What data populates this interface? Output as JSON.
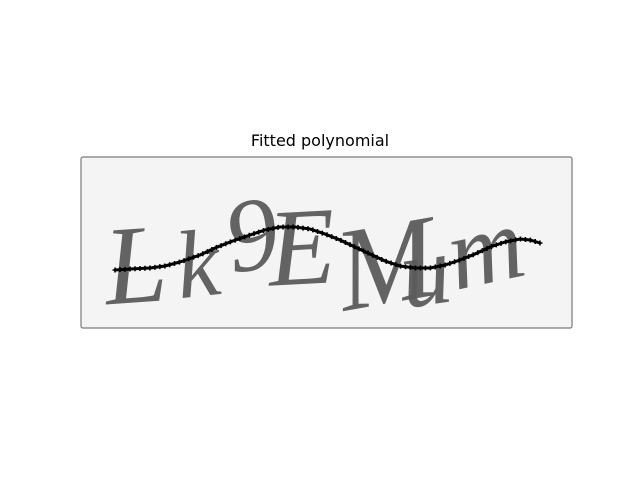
{
  "figure": {
    "title": "Fitted polynomial",
    "captcha_text": "Lk9EMum"
  },
  "colors": {
    "background": "#ffffff",
    "image_background": "#f4f4f4",
    "image_border": "#7a7a7a",
    "glyph": "#5b5b5b",
    "curve": "#000000"
  }
}
